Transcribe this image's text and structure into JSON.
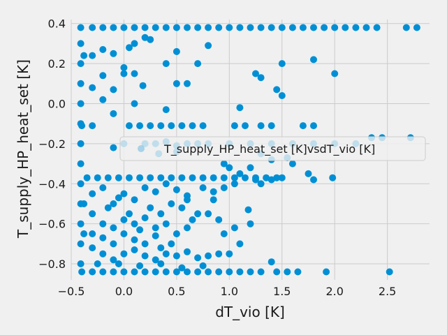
{
  "chart_data": {
    "type": "scatter",
    "title": "",
    "xlabel": "dT_vio [K]",
    "ylabel": "T_supply_HP_heat_set [K]",
    "xlim": [
      -0.5,
      2.9
    ],
    "ylim": [
      -0.88,
      0.42
    ],
    "xticks": [
      -0.5,
      0.0,
      0.5,
      1.0,
      1.5,
      2.0,
      2.5
    ],
    "xtick_labels": [
      "−0.5",
      "0.0",
      "0.5",
      "1.0",
      "1.5",
      "2.0",
      "2.5"
    ],
    "yticks": [
      -0.8,
      -0.6,
      -0.4,
      -0.2,
      0.0,
      0.2,
      0.4
    ],
    "ytick_labels": [
      "−0.8",
      "−0.6",
      "−0.4",
      "−0.2",
      "0.0",
      "0.2",
      "0.4"
    ],
    "grid": true,
    "legend": {
      "placement": "center-right",
      "label": "T_supply_HP_heat_set [K]vsdT_vio [K]"
    },
    "series_color": "#008fd5",
    "series": [
      {
        "name": "T_supply_HP_heat_set [K]vsdT_vio [K]",
        "points": [
          [
            -0.41,
            0.38
          ],
          [
            -0.3,
            0.38
          ],
          [
            -0.2,
            0.38
          ],
          [
            -0.1,
            0.38
          ],
          [
            0.0,
            0.38
          ],
          [
            0.1,
            0.38
          ],
          [
            0.2,
            0.38
          ],
          [
            0.3,
            0.38
          ],
          [
            0.4,
            0.38
          ],
          [
            0.5,
            0.38
          ],
          [
            0.6,
            0.38
          ],
          [
            0.7,
            0.38
          ],
          [
            0.8,
            0.38
          ],
          [
            0.9,
            0.38
          ],
          [
            1.0,
            0.38
          ],
          [
            1.1,
            0.38
          ],
          [
            1.2,
            0.38
          ],
          [
            1.3,
            0.38
          ],
          [
            1.4,
            0.38
          ],
          [
            1.5,
            0.38
          ],
          [
            1.6,
            0.38
          ],
          [
            1.7,
            0.38
          ],
          [
            1.8,
            0.38
          ],
          [
            1.9,
            0.38
          ],
          [
            2.0,
            0.38
          ],
          [
            2.1,
            0.38
          ],
          [
            2.2,
            0.38
          ],
          [
            2.3,
            0.38
          ],
          [
            2.4,
            0.38
          ],
          [
            2.68,
            0.38
          ],
          [
            2.78,
            0.38
          ],
          [
            -0.41,
            0.3
          ],
          [
            -0.41,
            0.2
          ],
          [
            -0.41,
            0.1
          ],
          [
            -0.41,
            0.0
          ],
          [
            -0.41,
            -0.1
          ],
          [
            -0.41,
            -0.2
          ],
          [
            -0.41,
            -0.3
          ],
          [
            -0.41,
            -0.4
          ],
          [
            -0.41,
            -0.5
          ],
          [
            -0.41,
            -0.6
          ],
          [
            -0.41,
            -0.7
          ],
          [
            -0.41,
            -0.8
          ],
          [
            -0.38,
            0.24
          ],
          [
            -0.38,
            -0.5
          ],
          [
            -0.38,
            -0.65
          ],
          [
            -0.4,
            -0.84
          ],
          [
            -0.3,
            -0.84
          ],
          [
            -0.2,
            -0.84
          ],
          [
            -0.1,
            -0.84
          ],
          [
            0.0,
            -0.84
          ],
          [
            0.1,
            -0.84
          ],
          [
            0.2,
            -0.84
          ],
          [
            0.3,
            -0.84
          ],
          [
            0.4,
            -0.84
          ],
          [
            0.5,
            -0.84
          ],
          [
            0.6,
            -0.84
          ],
          [
            0.7,
            -0.84
          ],
          [
            0.8,
            -0.84
          ],
          [
            0.9,
            -0.84
          ],
          [
            1.0,
            -0.84
          ],
          [
            1.1,
            -0.84
          ],
          [
            1.2,
            -0.84
          ],
          [
            1.3,
            -0.84
          ],
          [
            1.45,
            -0.84
          ],
          [
            1.55,
            -0.84
          ],
          [
            1.65,
            -0.84
          ],
          [
            1.92,
            -0.84
          ],
          [
            2.52,
            -0.84
          ],
          [
            -0.35,
            -0.37
          ],
          [
            -0.25,
            -0.37
          ],
          [
            -0.15,
            -0.37
          ],
          [
            -0.05,
            -0.37
          ],
          [
            0.05,
            -0.37
          ],
          [
            0.15,
            -0.37
          ],
          [
            0.25,
            -0.37
          ],
          [
            0.35,
            -0.37
          ],
          [
            0.45,
            -0.37
          ],
          [
            0.55,
            -0.37
          ],
          [
            0.65,
            -0.37
          ],
          [
            0.75,
            -0.37
          ],
          [
            0.85,
            -0.37
          ],
          [
            0.95,
            -0.37
          ],
          [
            1.05,
            -0.37
          ],
          [
            1.15,
            -0.37
          ],
          [
            1.25,
            -0.37
          ],
          [
            1.35,
            -0.37
          ],
          [
            1.45,
            -0.37
          ],
          [
            1.5,
            -0.37
          ],
          [
            -0.4,
            -0.11
          ],
          [
            -0.3,
            -0.11
          ],
          [
            0.05,
            -0.11
          ],
          [
            0.15,
            -0.11
          ],
          [
            0.25,
            -0.11
          ],
          [
            0.35,
            -0.11
          ],
          [
            0.45,
            -0.11
          ],
          [
            0.55,
            -0.11
          ],
          [
            0.65,
            -0.11
          ],
          [
            0.75,
            -0.11
          ],
          [
            1.05,
            -0.11
          ],
          [
            1.15,
            -0.11
          ],
          [
            1.3,
            -0.11
          ],
          [
            1.4,
            -0.11
          ],
          [
            1.7,
            -0.11
          ],
          [
            1.8,
            -0.11
          ],
          [
            -0.3,
            0.24
          ],
          [
            -0.2,
            0.27
          ],
          [
            -0.1,
            0.25
          ],
          [
            0.0,
            0.18
          ],
          [
            0.05,
            0.28
          ],
          [
            0.1,
            0.3
          ],
          [
            0.2,
            0.33
          ],
          [
            0.25,
            0.32
          ],
          [
            0.5,
            0.26
          ],
          [
            0.8,
            0.29
          ],
          [
            1.8,
            0.22
          ],
          [
            -0.2,
            0.14
          ],
          [
            -0.1,
            0.07
          ],
          [
            0.0,
            0.15
          ],
          [
            0.1,
            0.15
          ],
          [
            0.18,
            0.09
          ],
          [
            0.4,
            0.2
          ],
          [
            0.7,
            0.2
          ],
          [
            1.25,
            0.15
          ],
          [
            1.3,
            0.13
          ],
          [
            1.5,
            0.2
          ],
          [
            2.0,
            0.15
          ],
          [
            -0.3,
            0.08
          ],
          [
            -0.2,
            0.02
          ],
          [
            -0.1,
            -0.05
          ],
          [
            0.1,
            0.0
          ],
          [
            0.4,
            -0.03
          ],
          [
            0.5,
            0.1
          ],
          [
            0.6,
            0.1
          ],
          [
            1.1,
            -0.02
          ],
          [
            1.45,
            0.07
          ],
          [
            1.5,
            0.04
          ],
          [
            -0.1,
            -0.22
          ],
          [
            0.0,
            -0.2
          ],
          [
            0.2,
            -0.2
          ],
          [
            0.3,
            -0.2
          ],
          [
            0.4,
            -0.19
          ],
          [
            0.5,
            -0.21
          ],
          [
            0.6,
            -0.2
          ],
          [
            0.7,
            -0.2
          ],
          [
            0.8,
            -0.2
          ],
          [
            1.0,
            -0.2
          ],
          [
            1.2,
            -0.2
          ],
          [
            1.4,
            -0.2
          ],
          [
            1.6,
            -0.2
          ],
          [
            1.8,
            -0.2
          ],
          [
            2.0,
            -0.2
          ],
          [
            2.2,
            -0.2
          ],
          [
            2.35,
            -0.17
          ],
          [
            2.45,
            -0.17
          ],
          [
            2.72,
            -0.17
          ],
          [
            0.33,
            -0.25
          ],
          [
            0.5,
            -0.24
          ],
          [
            1.3,
            -0.25
          ],
          [
            1.4,
            -0.28
          ],
          [
            1.55,
            -0.27
          ],
          [
            1.6,
            -0.3
          ],
          [
            0.95,
            -0.3
          ],
          [
            1.0,
            -0.32
          ],
          [
            1.1,
            -0.35
          ],
          [
            1.2,
            -0.32
          ],
          [
            1.25,
            -0.38
          ],
          [
            1.3,
            -0.4
          ],
          [
            1.4,
            -0.38
          ],
          [
            1.75,
            -0.35
          ],
          [
            1.8,
            -0.38
          ],
          [
            1.98,
            -0.37
          ],
          [
            -0.3,
            -0.45
          ],
          [
            -0.2,
            -0.42
          ],
          [
            -0.1,
            -0.5
          ],
          [
            0.0,
            -0.45
          ],
          [
            0.1,
            -0.48
          ],
          [
            0.2,
            -0.42
          ],
          [
            0.3,
            -0.44
          ],
          [
            0.4,
            -0.4
          ],
          [
            0.5,
            -0.43
          ],
          [
            0.6,
            -0.46
          ],
          [
            0.75,
            -0.42
          ],
          [
            0.85,
            -0.44
          ],
          [
            0.95,
            -0.42
          ],
          [
            1.05,
            -0.4
          ],
          [
            0.25,
            -0.52
          ],
          [
            0.55,
            -0.52
          ],
          [
            0.6,
            -0.48
          ],
          [
            0.85,
            -0.48
          ],
          [
            1.18,
            -0.53
          ],
          [
            1.2,
            -0.6
          ],
          [
            0.8,
            -0.55
          ],
          [
            0.9,
            -0.58
          ],
          [
            0.95,
            -0.65
          ],
          [
            1.05,
            -0.62
          ],
          [
            1.1,
            -0.7
          ],
          [
            0.6,
            -0.62
          ],
          [
            0.7,
            -0.55
          ],
          [
            0.65,
            -0.58
          ],
          [
            0.5,
            -0.65
          ],
          [
            0.45,
            -0.7
          ],
          [
            -0.3,
            -0.55
          ],
          [
            -0.2,
            -0.6
          ],
          [
            -0.1,
            -0.62
          ],
          [
            0.0,
            -0.58
          ],
          [
            0.1,
            -0.6
          ],
          [
            0.2,
            -0.57
          ],
          [
            0.3,
            -0.62
          ],
          [
            0.4,
            -0.6
          ],
          [
            -0.3,
            -0.65
          ],
          [
            -0.2,
            -0.67
          ],
          [
            -0.1,
            -0.7
          ],
          [
            0.0,
            -0.65
          ],
          [
            0.1,
            -0.68
          ],
          [
            0.2,
            -0.7
          ],
          [
            0.3,
            -0.66
          ],
          [
            0.35,
            -0.72
          ],
          [
            -0.3,
            -0.72
          ],
          [
            -0.2,
            -0.75
          ],
          [
            -0.1,
            -0.78
          ],
          [
            0.0,
            -0.75
          ],
          [
            0.1,
            -0.73
          ],
          [
            0.2,
            -0.76
          ],
          [
            0.3,
            -0.78
          ],
          [
            0.4,
            -0.75
          ],
          [
            0.5,
            -0.76
          ],
          [
            0.6,
            -0.74
          ],
          [
            0.7,
            -0.77
          ],
          [
            0.8,
            -0.76
          ],
          [
            0.9,
            -0.75
          ],
          [
            1.0,
            -0.75
          ],
          [
            -0.25,
            -0.8
          ],
          [
            -0.05,
            -0.8
          ],
          [
            0.15,
            -0.81
          ],
          [
            0.35,
            -0.8
          ],
          [
            0.55,
            -0.82
          ],
          [
            0.75,
            -0.81
          ],
          [
            1.4,
            -0.79
          ],
          [
            -0.15,
            -0.52
          ],
          [
            0.05,
            -0.55
          ],
          [
            -0.05,
            -0.47
          ],
          [
            0.15,
            -0.63
          ],
          [
            0.35,
            -0.55
          ],
          [
            0.45,
            -0.5
          ]
        ]
      }
    ]
  }
}
